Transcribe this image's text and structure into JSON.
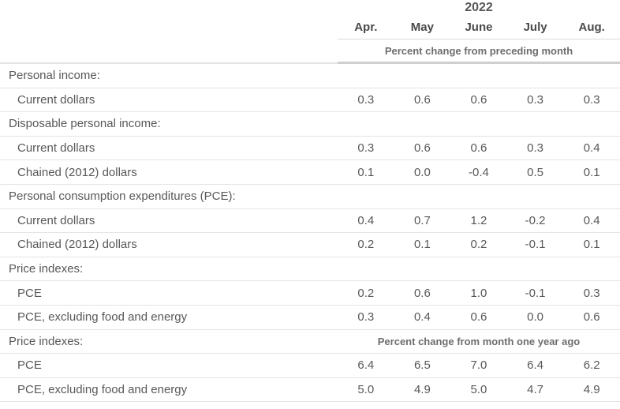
{
  "table": {
    "year": "2022",
    "columns": [
      "Apr.",
      "May",
      "June",
      "July",
      "Aug."
    ],
    "header_note": "Percent change from preceding month",
    "rows": [
      {
        "type": "section",
        "label": "Personal income:"
      },
      {
        "type": "data",
        "label": "Current dollars",
        "values": [
          "0.3",
          "0.6",
          "0.6",
          "0.3",
          "0.3"
        ]
      },
      {
        "type": "section",
        "label": "Disposable personal income:"
      },
      {
        "type": "data",
        "label": "Current dollars",
        "values": [
          "0.3",
          "0.6",
          "0.6",
          "0.3",
          "0.4"
        ]
      },
      {
        "type": "data",
        "label": "Chained (2012) dollars",
        "values": [
          "0.1",
          "0.0",
          "-0.4",
          "0.5",
          "0.1"
        ]
      },
      {
        "type": "section",
        "label": "Personal consumption expenditures (PCE):"
      },
      {
        "type": "data",
        "label": "Current dollars",
        "values": [
          "0.4",
          "0.7",
          "1.2",
          "-0.2",
          "0.4"
        ]
      },
      {
        "type": "data",
        "label": "Chained (2012) dollars",
        "values": [
          "0.2",
          "0.1",
          "0.2",
          "-0.1",
          "0.1"
        ]
      },
      {
        "type": "section",
        "label": "Price indexes:"
      },
      {
        "type": "data",
        "label": "PCE",
        "values": [
          "0.2",
          "0.6",
          "1.0",
          "-0.1",
          "0.3"
        ]
      },
      {
        "type": "data",
        "label": "PCE, excluding food and energy",
        "values": [
          "0.3",
          "0.4",
          "0.6",
          "0.0",
          "0.6"
        ]
      },
      {
        "type": "section-note",
        "label": "Price indexes:",
        "note": "Percent change from month one year ago"
      },
      {
        "type": "data",
        "label": "PCE",
        "values": [
          "6.4",
          "6.5",
          "7.0",
          "6.4",
          "6.2"
        ]
      },
      {
        "type": "data",
        "label": "PCE, excluding food and energy",
        "values": [
          "5.0",
          "4.9",
          "5.0",
          "4.7",
          "4.9"
        ]
      }
    ]
  },
  "colors": {
    "text": "#58585a",
    "header_text": "#494949",
    "note_text": "#6d6d6d",
    "row_border": "#e4e4e4",
    "header_border": "#dcdcdc",
    "header_divider": "#cfcfcf",
    "background": "#ffffff"
  },
  "chart_data": {
    "type": "table",
    "title": "2022",
    "columns": [
      "Apr.",
      "May",
      "June",
      "July",
      "Aug."
    ],
    "sections": [
      {
        "section": "Personal income:",
        "unit": "Percent change from preceding month",
        "rows": [
          {
            "label": "Current dollars",
            "values": [
              0.3,
              0.6,
              0.6,
              0.3,
              0.3
            ]
          }
        ]
      },
      {
        "section": "Disposable personal income:",
        "unit": "Percent change from preceding month",
        "rows": [
          {
            "label": "Current dollars",
            "values": [
              0.3,
              0.6,
              0.6,
              0.3,
              0.4
            ]
          },
          {
            "label": "Chained (2012) dollars",
            "values": [
              0.1,
              0.0,
              -0.4,
              0.5,
              0.1
            ]
          }
        ]
      },
      {
        "section": "Personal consumption expenditures (PCE):",
        "unit": "Percent change from preceding month",
        "rows": [
          {
            "label": "Current dollars",
            "values": [
              0.4,
              0.7,
              1.2,
              -0.2,
              0.4
            ]
          },
          {
            "label": "Chained (2012) dollars",
            "values": [
              0.2,
              0.1,
              0.2,
              -0.1,
              0.1
            ]
          }
        ]
      },
      {
        "section": "Price indexes:",
        "unit": "Percent change from preceding month",
        "rows": [
          {
            "label": "PCE",
            "values": [
              0.2,
              0.6,
              1.0,
              -0.1,
              0.3
            ]
          },
          {
            "label": "PCE, excluding food and energy",
            "values": [
              0.3,
              0.4,
              0.6,
              0.0,
              0.6
            ]
          }
        ]
      },
      {
        "section": "Price indexes:",
        "unit": "Percent change from month one year ago",
        "rows": [
          {
            "label": "PCE",
            "values": [
              6.4,
              6.5,
              7.0,
              6.4,
              6.2
            ]
          },
          {
            "label": "PCE, excluding food and energy",
            "values": [
              5.0,
              4.9,
              5.0,
              4.7,
              4.9
            ]
          }
        ]
      }
    ]
  }
}
